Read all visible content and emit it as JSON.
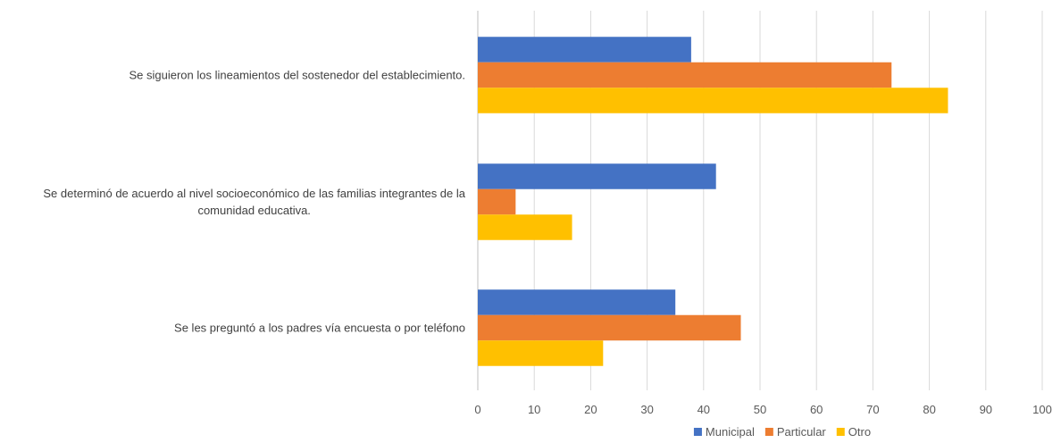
{
  "chart_data": {
    "type": "bar",
    "orientation": "horizontal",
    "categories": [
      [
        "Se siguieron los lineamientos del sostenedor del establecimiento."
      ],
      [
        "Se determinó de acuerdo al nivel socioeconómico de las familias integrantes de la",
        "comunidad educativa."
      ],
      [
        "Se les preguntó a los padres vía encuesta o por teléfono"
      ]
    ],
    "series": [
      {
        "name": "Municipal",
        "color": "#4472C4",
        "values": [
          37.8,
          42.2,
          35.0
        ]
      },
      {
        "name": "Particular",
        "color": "#ED7D31",
        "values": [
          73.3,
          6.7,
          46.6
        ]
      },
      {
        "name": "Otro",
        "color": "#FFC000",
        "values": [
          83.3,
          16.7,
          22.2
        ]
      }
    ],
    "xlim": [
      0,
      100
    ],
    "xticks": [
      0,
      10,
      20,
      30,
      40,
      50,
      60,
      70,
      80,
      90,
      100
    ],
    "title": "",
    "xlabel": "",
    "ylabel": "",
    "grid": true,
    "legend_position": "bottom"
  }
}
